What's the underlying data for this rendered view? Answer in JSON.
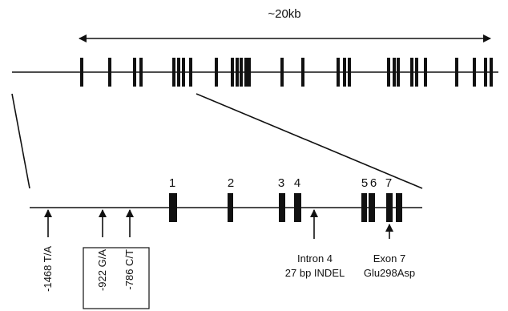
{
  "scale_label": "~20kb",
  "exon_numbers": [
    "1",
    "2",
    "3",
    "4",
    "5",
    "6",
    "7"
  ],
  "polymorphisms": {
    "promoter_1": "-1468 T/A",
    "promoter_2": "-922 G/A",
    "promoter_3": "-786 C/T",
    "intron": {
      "line1": "Intron 4",
      "line2": "27 bp INDEL"
    },
    "exon": {
      "line1": "Exon 7",
      "line2": "Glu298Asp"
    }
  }
}
